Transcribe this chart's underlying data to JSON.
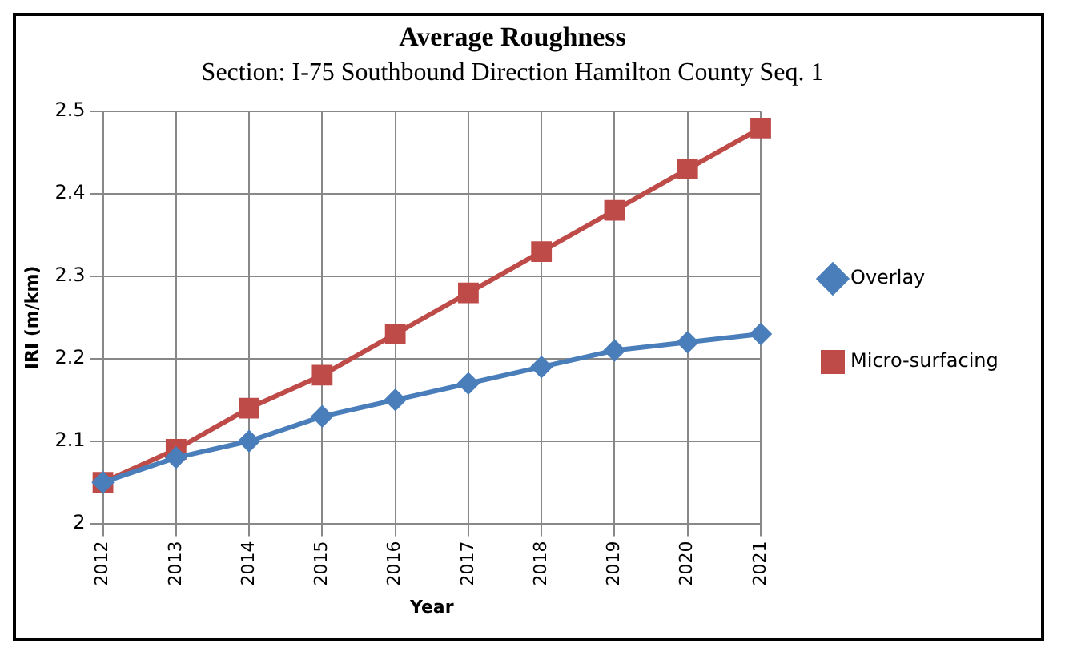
{
  "chart_data": {
    "type": "line",
    "title": "Average Roughness",
    "subtitle": "Section: I-75 Southbound Direction Hamilton County Seq. 1",
    "xlabel": "Year",
    "ylabel": "IRI (m/km)",
    "categories": [
      "2012",
      "2013",
      "2014",
      "2015",
      "2016",
      "2017",
      "2018",
      "2019",
      "2020",
      "2021"
    ],
    "series": [
      {
        "name": "Overlay",
        "color": "#4a7ebb",
        "marker": "diamond",
        "values": [
          2.05,
          2.08,
          2.1,
          2.13,
          2.15,
          2.17,
          2.19,
          2.21,
          2.22,
          2.23
        ]
      },
      {
        "name": "Micro-surfacing",
        "color": "#be4b48",
        "marker": "square",
        "values": [
          2.05,
          2.09,
          2.14,
          2.18,
          2.23,
          2.28,
          2.33,
          2.38,
          2.43,
          2.48
        ]
      }
    ],
    "ylim": [
      2,
      2.5
    ],
    "yticks": [
      2,
      2.1,
      2.2,
      2.3,
      2.4,
      2.5
    ],
    "grid": true,
    "legend": "right"
  }
}
